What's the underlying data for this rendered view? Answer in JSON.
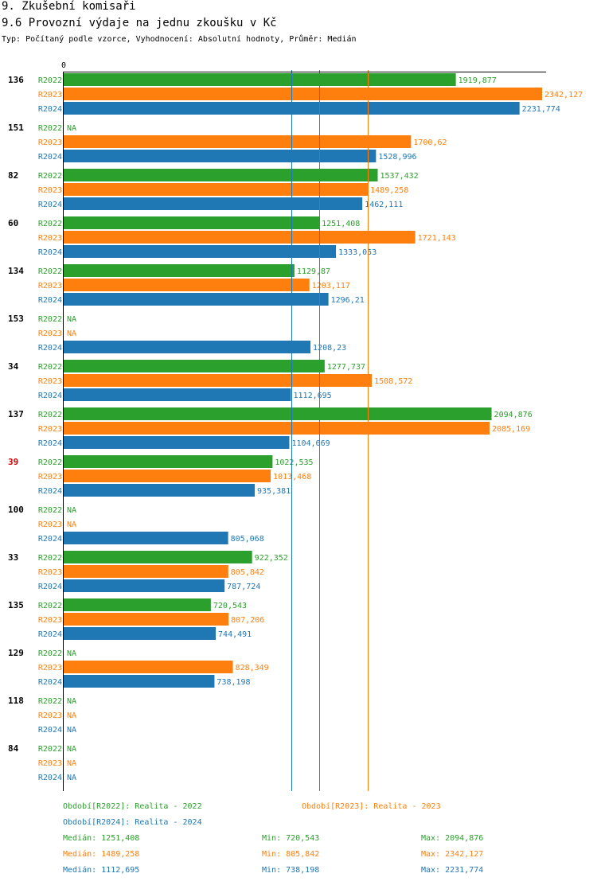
{
  "header": {
    "title": "9. Zkušební komisaři",
    "subtitle": "9.6 Provozní výdaje na jednu zkoušku v Kč",
    "description": "Typ: Počítaný podle vzorce, Vyhodnocení: Absolutní hodnoty, Průměr: Medián"
  },
  "chart_data": {
    "type": "bar",
    "orientation": "horizontal",
    "x_axis_origin_label": "0",
    "xlim": [
      0,
      2342.127
    ],
    "na_label": "NA",
    "highlight_color": "#cc0000",
    "series": [
      {
        "name": "R2022",
        "color": "#2ca02c"
      },
      {
        "name": "R2023",
        "color": "#ff7f0e"
      },
      {
        "name": "R2024",
        "color": "#1f77b4"
      }
    ],
    "groups": [
      {
        "id": "136",
        "highlight": false,
        "values": [
          1919.877,
          2342.127,
          2231.774
        ],
        "labels": [
          "1919,877",
          "2342,127",
          "2231,774"
        ]
      },
      {
        "id": "151",
        "highlight": false,
        "values": [
          null,
          1700.62,
          1528.996
        ],
        "labels": [
          "NA",
          "1700,62",
          "1528,996"
        ]
      },
      {
        "id": "82",
        "highlight": false,
        "values": [
          1537.432,
          1489.258,
          1462.111
        ],
        "labels": [
          "1537,432",
          "1489,258",
          "1462,111"
        ]
      },
      {
        "id": "60",
        "highlight": false,
        "values": [
          1251.408,
          1721.143,
          1333.053
        ],
        "labels": [
          "1251,408",
          "1721,143",
          "1333,053"
        ]
      },
      {
        "id": "134",
        "highlight": false,
        "values": [
          1129.87,
          1203.117,
          1296.21
        ],
        "labels": [
          "1129,87",
          "1203,117",
          "1296,21"
        ]
      },
      {
        "id": "153",
        "highlight": false,
        "values": [
          null,
          null,
          1208.23
        ],
        "labels": [
          "NA",
          "NA",
          "1208,23"
        ]
      },
      {
        "id": "34",
        "highlight": false,
        "values": [
          1277.737,
          1508.572,
          1112.695
        ],
        "labels": [
          "1277,737",
          "1508,572",
          "1112,695"
        ]
      },
      {
        "id": "137",
        "highlight": false,
        "values": [
          2094.876,
          2085.169,
          1104.669
        ],
        "labels": [
          "2094,876",
          "2085,169",
          "1104,669"
        ]
      },
      {
        "id": "39",
        "highlight": true,
        "values": [
          1022.535,
          1013.468,
          935.381
        ],
        "labels": [
          "1022,535",
          "1013,468",
          "935,381"
        ]
      },
      {
        "id": "100",
        "highlight": false,
        "values": [
          null,
          null,
          805.068
        ],
        "labels": [
          "NA",
          "NA",
          "805,068"
        ]
      },
      {
        "id": "33",
        "highlight": false,
        "values": [
          922.352,
          805.842,
          787.724
        ],
        "labels": [
          "922,352",
          "805,842",
          "787,724"
        ]
      },
      {
        "id": "135",
        "highlight": false,
        "values": [
          720.543,
          807.206,
          744.491
        ],
        "labels": [
          "720,543",
          "807,206",
          "744,491"
        ]
      },
      {
        "id": "129",
        "highlight": false,
        "values": [
          null,
          828.349,
          738.198
        ],
        "labels": [
          "NA",
          "828,349",
          "738,198"
        ]
      },
      {
        "id": "118",
        "highlight": false,
        "values": [
          null,
          null,
          null
        ],
        "labels": [
          "NA",
          "NA",
          "NA"
        ]
      },
      {
        "id": "84",
        "highlight": false,
        "values": [
          null,
          null,
          null
        ],
        "labels": [
          "NA",
          "NA",
          "NA"
        ]
      }
    ],
    "reference_lines": [
      {
        "value": 1112.695,
        "color": "#1f77b4"
      },
      {
        "value": 1251.408,
        "color": "#2ca02c"
      },
      {
        "value": 1489.258,
        "color": "#ff7f0e"
      }
    ]
  },
  "legend": {
    "period_2022": "Období[R2022]: Realita - 2022",
    "period_2023": "Období[R2023]: Realita - 2023",
    "period_2024": "Období[R2024]: Realita - 2024",
    "stats": [
      {
        "median": "Medián: 1251,408",
        "min": "Min: 720,543",
        "max": "Max: 2094,876"
      },
      {
        "median": "Medián: 1489,258",
        "min": "Min: 805,842",
        "max": "Max: 2342,127"
      },
      {
        "median": "Medián: 1112,695",
        "min": "Min: 738,198",
        "max": "Max: 2231,774"
      }
    ]
  }
}
